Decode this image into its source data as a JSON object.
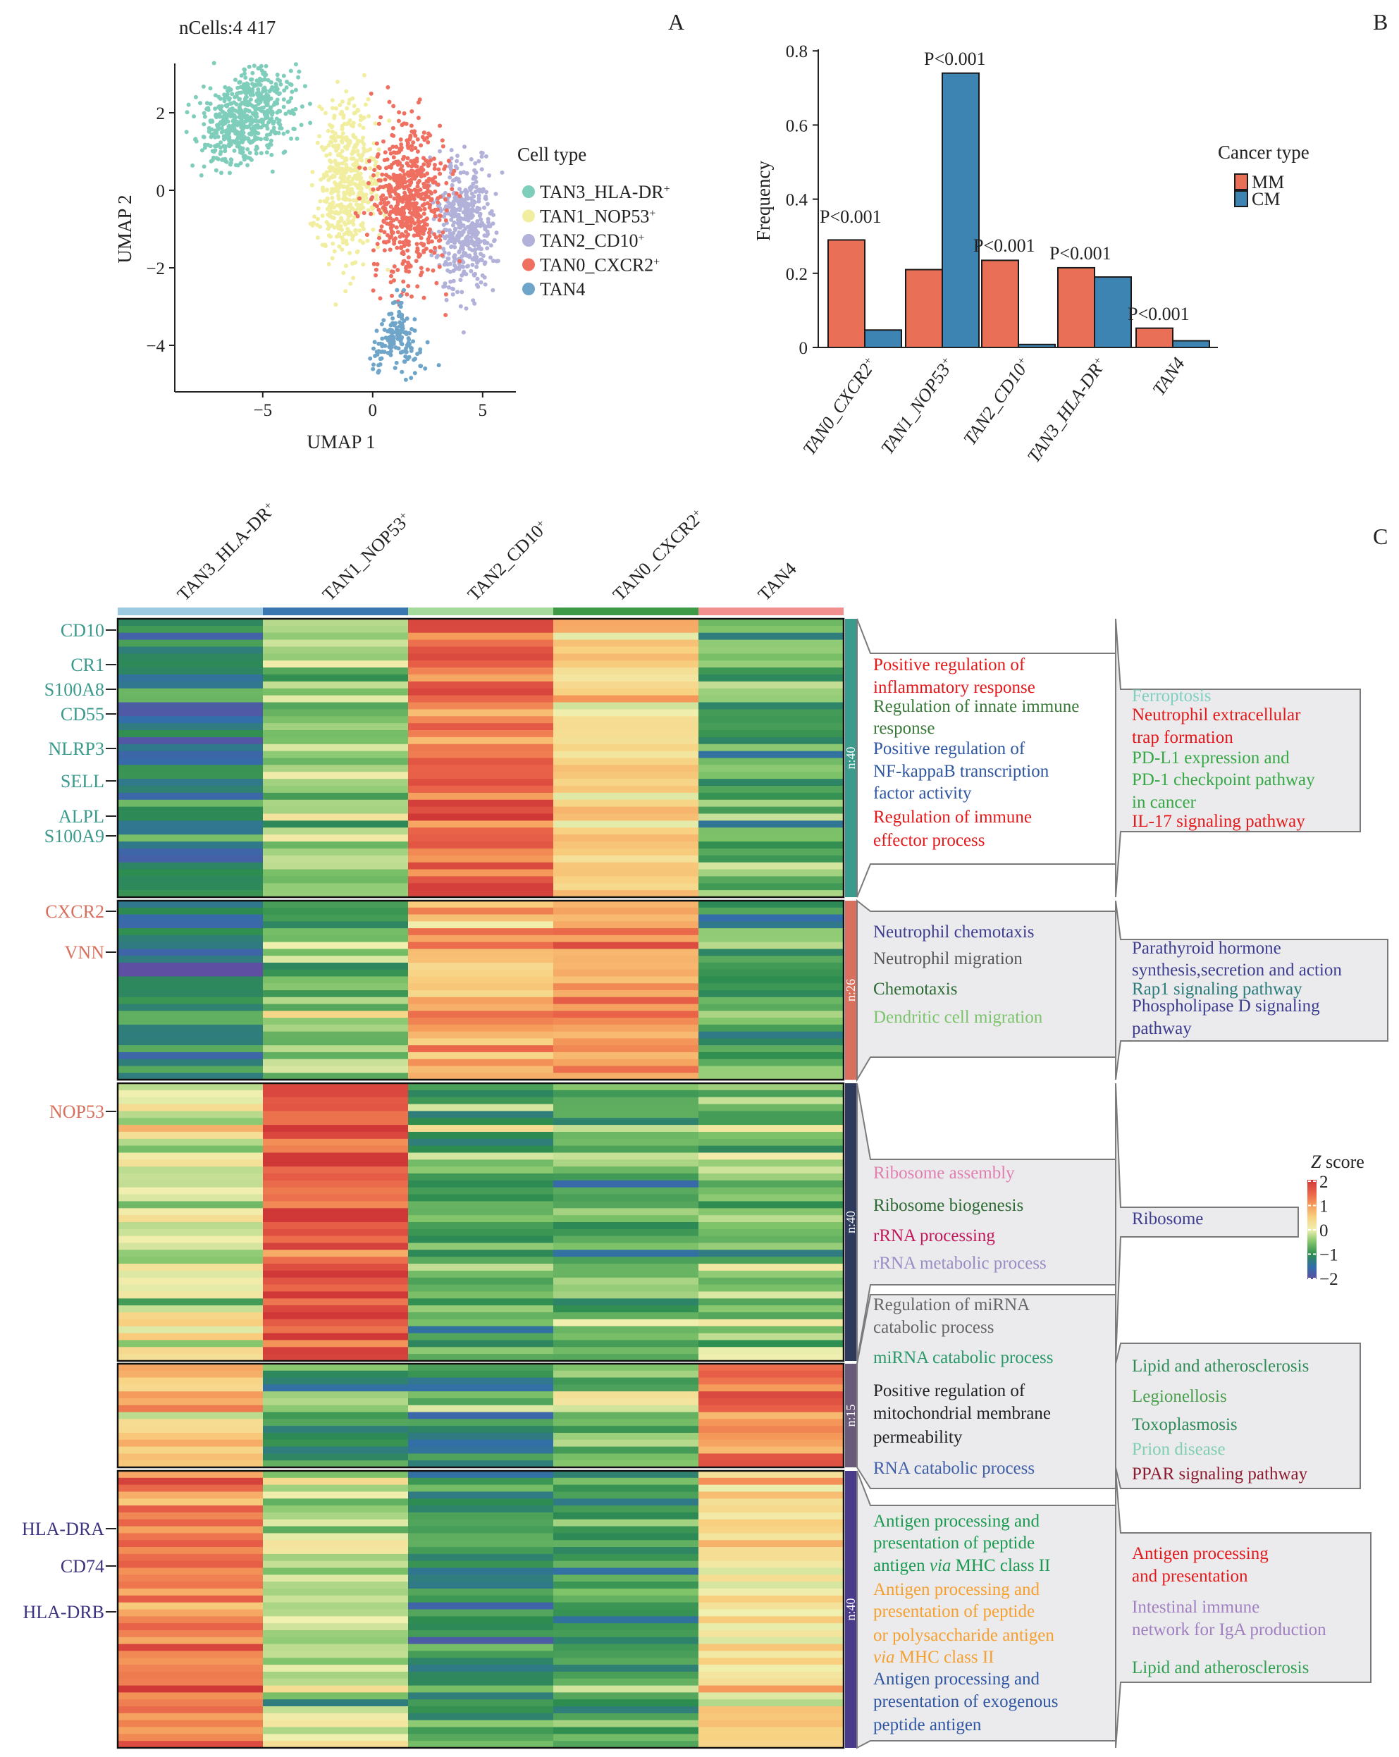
{
  "panels": {
    "A": "A",
    "B": "B",
    "C": "C"
  },
  "chart_data": [
    {
      "type": "scatter",
      "title": "nCells:4 417",
      "xlabel": "UMAP 1",
      "ylabel": "UMAP 2",
      "xticks": [
        "−5",
        "0",
        "5"
      ],
      "xtick_values": [
        -5,
        0,
        5
      ],
      "yticks": [
        "2",
        "0",
        "−2",
        "−4"
      ],
      "ytick_values": [
        2,
        0,
        -2,
        -4
      ],
      "xlim": [
        -9,
        6.5
      ],
      "ylim": [
        -5.2,
        3.5
      ],
      "legend_title": "Cell type",
      "legend_position": "right",
      "series": [
        {
          "name": "TAN3_HLA-DR",
          "sup": "+",
          "color": "#7fcdbb",
          "approx_center": [
            -5.8,
            1.9
          ],
          "spread": [
            1.3,
            0.7
          ]
        },
        {
          "name": "TAN1_NOP53",
          "sup": "+",
          "color": "#f1ee9f",
          "approx_center": [
            -1.2,
            0.2
          ],
          "spread": [
            0.9,
            1.2
          ]
        },
        {
          "name": "TAN2_CD10",
          "sup": "+",
          "color": "#b1b1d9",
          "approx_center": [
            4.2,
            -0.9
          ],
          "spread": [
            0.8,
            1.1
          ]
        },
        {
          "name": "TAN0_CXCR2",
          "sup": "+",
          "color": "#ef6f61",
          "approx_center": [
            1.6,
            -0.3
          ],
          "spread": [
            1.0,
            1.3
          ]
        },
        {
          "name": "TAN4",
          "sup": "",
          "color": "#6fa5c8",
          "approx_center": [
            1.1,
            -3.6
          ],
          "spread": [
            0.7,
            0.5
          ]
        }
      ]
    },
    {
      "type": "bar",
      "ylabel": "Frequency",
      "ylim": [
        0,
        0.8
      ],
      "yticks": [
        "0",
        "0.2",
        "0.4",
        "0.6",
        "0.8"
      ],
      "ytick_values": [
        0,
        0.2,
        0.4,
        0.6,
        0.8
      ],
      "categories": [
        {
          "base": "TAN0_CXCR2",
          "sup": "+"
        },
        {
          "base": "TAN1_NOP53",
          "sup": "+"
        },
        {
          "base": "TAN2_CD10",
          "sup": "+"
        },
        {
          "base": "TAN3_HLA-DR",
          "sup": "+"
        },
        {
          "base": "TAN4",
          "sup": ""
        }
      ],
      "legend_title": "Cancer type",
      "legend_position": "right",
      "series": [
        {
          "name": "MM",
          "color": "#e96f56",
          "values": [
            0.29,
            0.21,
            0.235,
            0.215,
            0.052
          ]
        },
        {
          "name": "CM",
          "color": "#3d84b2",
          "values": [
            0.047,
            0.74,
            0.008,
            0.19,
            0.018
          ]
        }
      ],
      "annotations": [
        "P<0.001",
        "P<0.001",
        "P<0.001",
        "P<0.001",
        "P<0.001"
      ]
    },
    {
      "type": "heatmap",
      "columns": [
        {
          "base": "TAN3_HLA-DR",
          "sup": "+",
          "color": "#9ecae1"
        },
        {
          "base": "TAN1_NOP53",
          "sup": "+",
          "color": "#3a76b0"
        },
        {
          "base": "TAN2_CD10",
          "sup": "+",
          "color": "#a6d99c"
        },
        {
          "base": "TAN0_CXCR2",
          "sup": "+",
          "color": "#3e9a47"
        },
        {
          "base": "TAN4",
          "sup": "",
          "color": "#f29090"
        }
      ],
      "colorbar": {
        "title_italic": "Z",
        "title_rest": " score",
        "ticks": [
          "2",
          "1",
          "0",
          "−1",
          "−2"
        ],
        "range": [
          -2,
          2
        ]
      },
      "clusters": [
        {
          "n_label": "n:40",
          "n": 40,
          "color": "#3a9a8c",
          "approx_column_means": [
            -1.2,
            -0.5,
            1.4,
            0.4,
            -0.7
          ],
          "genes": [
            {
              "name": "CD10",
              "color": "#3a9a8c"
            },
            {
              "name": "CR1",
              "color": "#3a9a8c"
            },
            {
              "name": "S100A8",
              "color": "#3a9a8c"
            },
            {
              "name": "CD55",
              "color": "#3a9a8c"
            },
            {
              "name": "NLRP3",
              "color": "#3a9a8c"
            },
            {
              "name": "SELL",
              "color": "#3a9a8c"
            },
            {
              "name": "ALPL",
              "color": "#3a9a8c"
            },
            {
              "name": "S100A9",
              "color": "#3a9a8c"
            }
          ],
          "go_terms": [
            {
              "color": "#e31a1c",
              "lines": [
                "Positive regulation of",
                "inflammatory response"
              ]
            },
            {
              "color": "#3a7a3a",
              "lines": [
                "Regulation of innate immune",
                "response"
              ]
            },
            {
              "color": "#2f56a0",
              "lines": [
                "Positive regulation of",
                "NF-kappaB transcription",
                "factor activity"
              ]
            },
            {
              "color": "#e31a1c",
              "lines": [
                "Regulation of immune",
                "effector process"
              ]
            }
          ],
          "kegg_terms": [
            {
              "color": "#7fd0c0",
              "lines": [
                "Ferroptosis"
              ]
            },
            {
              "color": "#e31a1c",
              "lines": [
                "Neutrophil extracellular",
                "trap formation"
              ]
            },
            {
              "color": "#36a845",
              "lines": [
                "PD-L1 expression and",
                "PD-1 checkpoint pathway",
                "in cancer"
              ]
            },
            {
              "color": "#e31a1c",
              "lines": [
                "IL-17 signaling pathway"
              ]
            }
          ]
        },
        {
          "n_label": "n:26",
          "n": 26,
          "color": "#d9705e",
          "approx_column_means": [
            -1.3,
            -0.5,
            0.8,
            1.0,
            -0.8
          ],
          "genes": [
            {
              "name": "CXCR2",
              "color": "#d9705e"
            },
            {
              "name": "VNN",
              "color": "#d9705e"
            }
          ],
          "go_terms": [
            {
              "color": "#3d3d8f",
              "lines": [
                "Neutrophil chemotaxis"
              ]
            },
            {
              "color": "#555555",
              "lines": [
                "Neutrophil migration"
              ]
            },
            {
              "color": "#2e6b34",
              "lines": [
                "Chemotaxis"
              ]
            },
            {
              "color": "#7cc56c",
              "lines": [
                "Dendritic cell migration"
              ]
            }
          ],
          "kegg_terms": [
            {
              "color": "#3d3d8f",
              "lines": [
                "Parathyroid hormone",
                "synthesis,secretion and action"
              ]
            },
            {
              "color": "#2a7a7a",
              "lines": [
                "Rap1 signaling pathway"
              ]
            },
            {
              "color": "#3d3d8f",
              "lines": [
                "Phospholipase D signaling",
                "pathway"
              ]
            }
          ]
        },
        {
          "n_label": "n:40",
          "n": 40,
          "color": "#2d3a5c",
          "approx_column_means": [
            -0.1,
            1.6,
            -0.8,
            -0.7,
            -0.5
          ],
          "genes": [
            {
              "name": "NOP53",
              "color": "#d9705e"
            }
          ],
          "go_terms": [
            {
              "color": "#e07fb0",
              "lines": [
                "Ribosome assembly"
              ]
            },
            {
              "color": "#2e6b34",
              "lines": [
                "Ribosome biogenesis"
              ]
            },
            {
              "color": "#c2185b",
              "lines": [
                "rRNA processing"
              ]
            },
            {
              "color": "#9a8cc4",
              "lines": [
                "rRNA metabolic process"
              ]
            }
          ],
          "kegg_terms": [
            {
              "color": "#3d3d8f",
              "lines": [
                "Ribosome"
              ]
            }
          ]
        },
        {
          "n_label": "n:15",
          "n": 15,
          "color": "#6a5a7a",
          "approx_column_means": [
            0.5,
            -0.8,
            -1.1,
            -0.5,
            1.3
          ],
          "genes": [],
          "go_terms": [
            {
              "color": "#666666",
              "lines": [
                "Regulation of miRNA",
                "catabolic process"
              ]
            },
            {
              "color": "#2a9a6a",
              "lines": [
                "miRNA catabolic process"
              ]
            },
            {
              "color": "#222222",
              "lines": [
                "Positive regulation of",
                "mitochondrial membrane",
                "permeability"
              ]
            },
            {
              "color": "#3f5fa8",
              "lines": [
                "RNA catabolic process"
              ]
            }
          ],
          "kegg_terms": [
            {
              "color": "#2e8b57",
              "lines": [
                "Lipid and atherosclerosis"
              ]
            },
            {
              "color": "#4aa04a",
              "lines": [
                "Legionellosis"
              ]
            },
            {
              "color": "#2e8b57",
              "lines": [
                "Toxoplasmosis"
              ]
            },
            {
              "color": "#7fcfb0",
              "lines": [
                "Prion disease"
              ]
            },
            {
              "color": "#8b1a2e",
              "lines": [
                "PPAR signaling pathway"
              ]
            }
          ]
        },
        {
          "n_label": "n:40",
          "n": 40,
          "color": "#4a3a8a",
          "approx_column_means": [
            1.3,
            -0.2,
            -0.9,
            -0.8,
            0.4
          ],
          "genes": [
            {
              "name": "HLA-DRA",
              "color": "#3d3480"
            },
            {
              "name": "CD74",
              "color": "#3d3480"
            },
            {
              "name": "HLA-DRB",
              "color": "#3d3480"
            }
          ],
          "go_terms": [
            {
              "color": "#1a9a50",
              "lines": [
                "Antigen processing and",
                "presentation of peptide",
                "antigen via MHC class II"
              ]
            },
            {
              "color": "#f5a030",
              "lines": [
                "Antigen processing and",
                "presentation of peptide",
                "or polysaccharide antigen",
                "via MHC class II"
              ]
            },
            {
              "color": "#2f56a0",
              "lines": [
                "Antigen processing and",
                "presentation of exogenous",
                "peptide antigen"
              ]
            }
          ],
          "kegg_terms": [
            {
              "color": "#e31a1c",
              "lines": [
                "Antigen processing",
                "and presentation"
              ]
            },
            {
              "color": "#a080c0",
              "lines": [
                "Intestinal immune",
                "network for IgA production"
              ]
            },
            {
              "color": "#30a050",
              "lines": [
                "Lipid and atherosclerosis"
              ]
            }
          ]
        }
      ]
    }
  ]
}
